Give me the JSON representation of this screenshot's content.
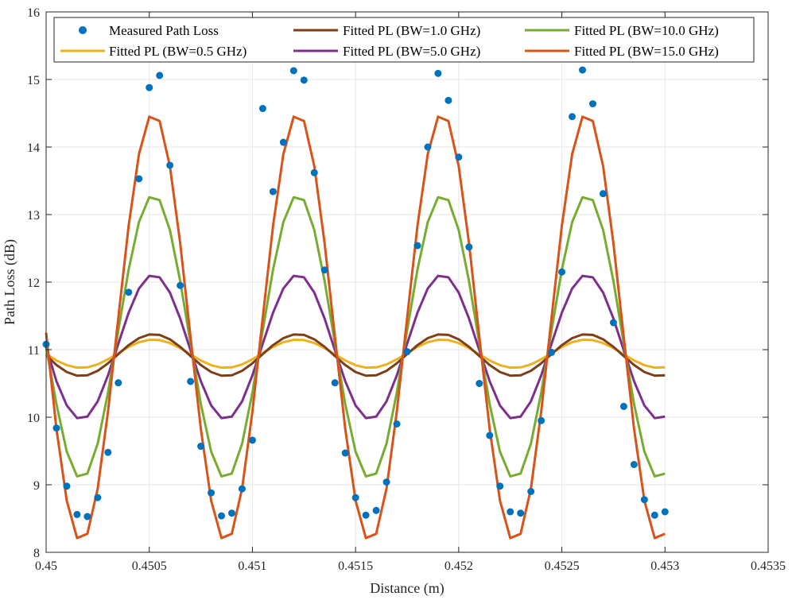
{
  "chart_data": {
    "type": "line",
    "title": "",
    "xlabel": "Distance (m)",
    "ylabel": "Path Loss (dB)",
    "xlim": [
      0.45,
      0.4535
    ],
    "ylim": [
      8,
      16
    ],
    "xticks": [
      0.45,
      0.4505,
      0.451,
      0.4515,
      0.452,
      0.4525,
      0.453,
      0.4535
    ],
    "xtick_labels": [
      "0.45",
      "0.4505",
      "0.451",
      "0.4515",
      "0.452",
      "0.4525",
      "0.453",
      "0.4535"
    ],
    "yticks": [
      8,
      9,
      10,
      11,
      12,
      13,
      14,
      15,
      16
    ],
    "ytick_labels": [
      "8",
      "9",
      "10",
      "11",
      "12",
      "13",
      "14",
      "15",
      "16"
    ],
    "grid": true,
    "legend_position": "top",
    "scatter": {
      "name": "Measured Path Loss",
      "color": "#0072BD",
      "x": [
        0.45,
        0.45005,
        0.4501,
        0.45015,
        0.4502,
        0.45025,
        0.4503,
        0.45035,
        0.4504,
        0.45045,
        0.4505,
        0.45055,
        0.4506,
        0.45065,
        0.4507,
        0.45075,
        0.4508,
        0.45085,
        0.4509,
        0.45095,
        0.451,
        0.45105,
        0.4511,
        0.45115,
        0.4512,
        0.45125,
        0.4513,
        0.45135,
        0.4514,
        0.45145,
        0.4515,
        0.45155,
        0.4516,
        0.45165,
        0.4517,
        0.45175,
        0.4518,
        0.45185,
        0.4519,
        0.45195,
        0.452,
        0.45205,
        0.4521,
        0.45215,
        0.4522,
        0.45225,
        0.4523,
        0.45235,
        0.4524,
        0.45245,
        0.4525,
        0.45255,
        0.4526,
        0.45265,
        0.4527,
        0.45275,
        0.4528,
        0.45285,
        0.4529,
        0.45295,
        0.453
      ],
      "y": [
        11.08,
        9.84,
        8.98,
        8.56,
        8.53,
        8.81,
        9.48,
        10.51,
        11.85,
        13.53,
        14.88,
        15.06,
        13.73,
        11.95,
        10.53,
        9.57,
        8.88,
        8.54,
        8.58,
        8.94,
        9.66,
        14.57,
        13.34,
        14.07,
        15.13,
        14.99,
        13.62,
        12.18,
        10.51,
        9.47,
        8.81,
        8.55,
        8.62,
        9.04,
        9.9,
        10.97,
        12.54,
        14.0,
        15.09,
        14.69,
        13.85,
        12.52,
        10.5,
        9.73,
        8.98,
        8.6,
        8.58,
        8.9,
        9.95,
        10.96,
        12.15,
        14.45,
        15.14,
        14.64,
        13.31,
        11.4,
        10.16,
        9.3,
        8.78,
        8.55,
        8.6
      ]
    },
    "x": [
      0.45,
      0.45005,
      0.4501,
      0.45015,
      0.4502,
      0.45025,
      0.4503,
      0.45035,
      0.4504,
      0.45045,
      0.4505,
      0.45055,
      0.4506,
      0.45065,
      0.4507,
      0.45075,
      0.4508,
      0.45085,
      0.4509,
      0.45095,
      0.451,
      0.45105,
      0.4511,
      0.45115,
      0.4512,
      0.45125,
      0.4513,
      0.45135,
      0.4514,
      0.45145,
      0.4515,
      0.45155,
      0.4516,
      0.45165,
      0.4517,
      0.45175,
      0.4518,
      0.45185,
      0.4519,
      0.45195,
      0.452,
      0.45205,
      0.4521,
      0.45215,
      0.4522,
      0.45225,
      0.4523,
      0.45235,
      0.4524,
      0.45245,
      0.4525,
      0.45255,
      0.4526,
      0.45265,
      0.4527,
      0.45275,
      0.4528,
      0.45285,
      0.4529,
      0.45295,
      0.453
    ],
    "series": [
      {
        "name": "Fitted PL (BW=0.5 GHz)",
        "color": "#EDB120",
        "center": 10.94,
        "amplitude": 0.21,
        "phase": 0.0,
        "y0": 10.94
      },
      {
        "name": "Fitted PL (BW=1.0 GHz)",
        "color": "#7E3E17",
        "center": 10.92,
        "amplitude": 0.31,
        "phase": 0.0,
        "y0": 10.92
      },
      {
        "name": "Fitted PL (BW=5.0 GHz)",
        "color": "#7E2F8E",
        "center": 11.04,
        "amplitude": 1.07,
        "phase": 0.0,
        "y0": 11.04
      },
      {
        "name": "Fitted PL (BW=10.0 GHz)",
        "color": "#77AC30",
        "center": 11.19,
        "amplitude": 2.1,
        "phase": 0.0,
        "y0": 11.04
      },
      {
        "name": "Fitted PL (BW=15.0 GHz)",
        "color": "#D95319",
        "center": 11.33,
        "amplitude": 3.17,
        "phase": 0.0,
        "y0": 11.25
      }
    ],
    "legend": {
      "entries": [
        "Measured Path Loss",
        "Fitted PL (BW=1.0 GHz)",
        "Fitted PL (BW=10.0 GHz)",
        "Fitted PL (BW=0.5 GHz)",
        "Fitted PL (BW=5.0 GHz)",
        "Fitted PL (BW=15.0 GHz)"
      ],
      "colors": [
        "#0072BD",
        "#7E3E17",
        "#77AC30",
        "#EDB120",
        "#7E2F8E",
        "#D95319"
      ]
    }
  }
}
